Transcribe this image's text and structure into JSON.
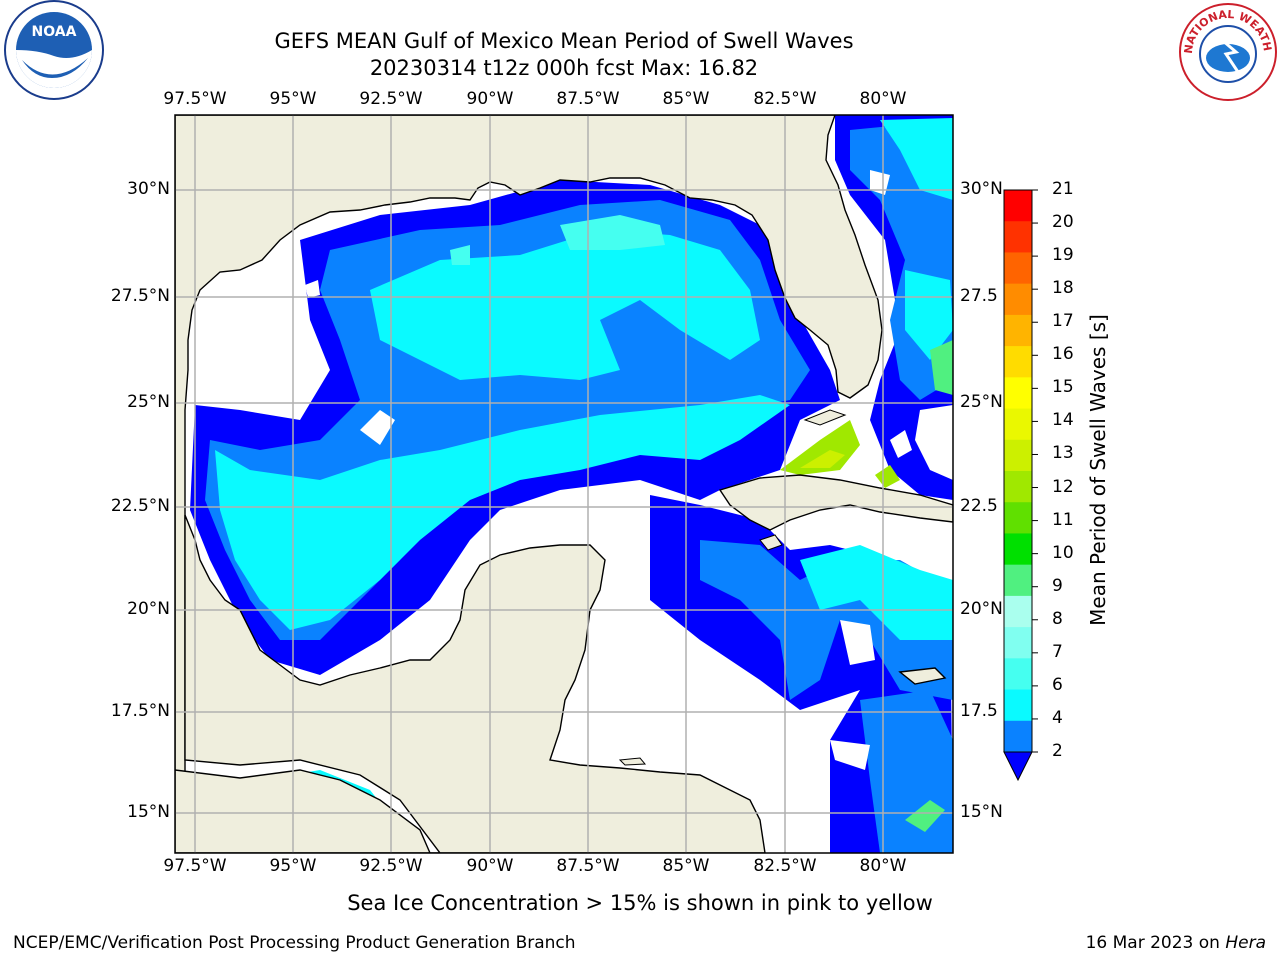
{
  "header": {
    "title_line1": "GEFS MEAN Gulf of Mexico Mean Period of Swell Waves",
    "title_line2": "20230314 t12z 000h fcst   Max: 16.82"
  },
  "logos": {
    "left": "NOAA",
    "right": "NATIONAL WEATHER SERVICE"
  },
  "map": {
    "lon_labels": [
      "97.5°W",
      "95°W",
      "92.5°W",
      "90°W",
      "87.5°W",
      "85°W",
      "82.5°W",
      "80°W"
    ],
    "lat_labels_left": [
      "30°N",
      "27.5°N",
      "25°N",
      "22.5°N",
      "20°N",
      "17.5°N",
      "15°N"
    ],
    "lat_labels_right": [
      "30°N",
      "27.5",
      "25°N",
      "22.5",
      "20°N",
      "17.5",
      "15°N"
    ],
    "colors": {
      "land": "#efeedd",
      "grid": "#b0b0b0",
      "coast": "#000000"
    }
  },
  "colorbar": {
    "label": "Mean Period of Swell Waves [s]",
    "ticks": [
      "2",
      "4",
      "6",
      "7",
      "8",
      "9",
      "10",
      "11",
      "12",
      "13",
      "14",
      "15",
      "16",
      "17",
      "18",
      "19",
      "20",
      "21"
    ],
    "colors": [
      "#0a82ff",
      "#0afaff",
      "#45fff0",
      "#80fff0",
      "#aaffee",
      "#50f080",
      "#00e000",
      "#60e000",
      "#a0e800",
      "#ccf000",
      "#eaf800",
      "#ffff00",
      "#ffdc00",
      "#ffb400",
      "#ff8c00",
      "#ff6400",
      "#ff3200",
      "#ff0000"
    ],
    "under_color": "#0000ff"
  },
  "footer": {
    "note": "Sea Ice Concentration > 15% is shown in pink to yellow",
    "left": "NCEP/EMC/Verification Post Processing Product Generation Branch",
    "right_date": "16 Mar 2023 on ",
    "right_host": "Hera"
  }
}
